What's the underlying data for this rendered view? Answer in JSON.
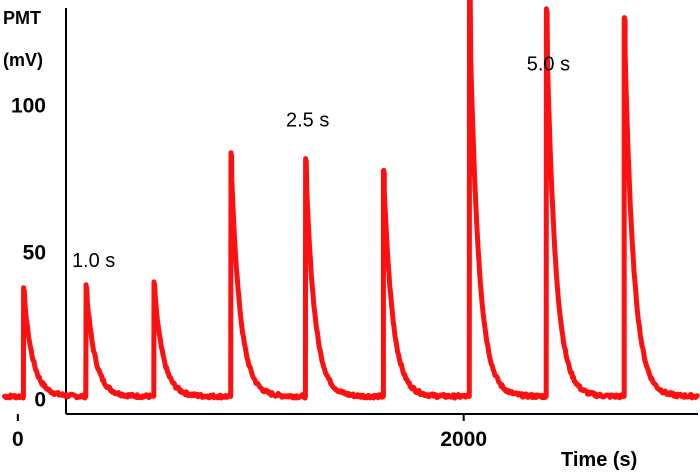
{
  "chart_data": {
    "type": "line",
    "title": "",
    "ylabel_line1": "PMT",
    "ylabel_line2": "(mV)",
    "xlabel": "Time (s)",
    "xlim": [
      -80,
      3060
    ],
    "ylim": [
      -5,
      136
    ],
    "x_ticks": [
      0,
      2000
    ],
    "y_ticks": [
      0,
      50,
      100
    ],
    "baseline": 1,
    "color": "#ff1010",
    "annotations": [
      {
        "text": "1.0 s",
        "x": 340,
        "y": 45
      },
      {
        "text": "2.5 s",
        "x": 1300,
        "y": 93
      },
      {
        "text": "5.0 s",
        "x": 2380,
        "y": 112
      }
    ],
    "pulses": [
      {
        "t": 25,
        "peak": 38
      },
      {
        "t": 305,
        "peak": 39
      },
      {
        "t": 610,
        "peak": 40
      },
      {
        "t": 955,
        "peak": 84
      },
      {
        "t": 1290,
        "peak": 82
      },
      {
        "t": 1640,
        "peak": 78
      },
      {
        "t": 2025,
        "peak": 137
      },
      {
        "t": 2370,
        "peak": 133
      },
      {
        "t": 2720,
        "peak": 130
      }
    ]
  }
}
